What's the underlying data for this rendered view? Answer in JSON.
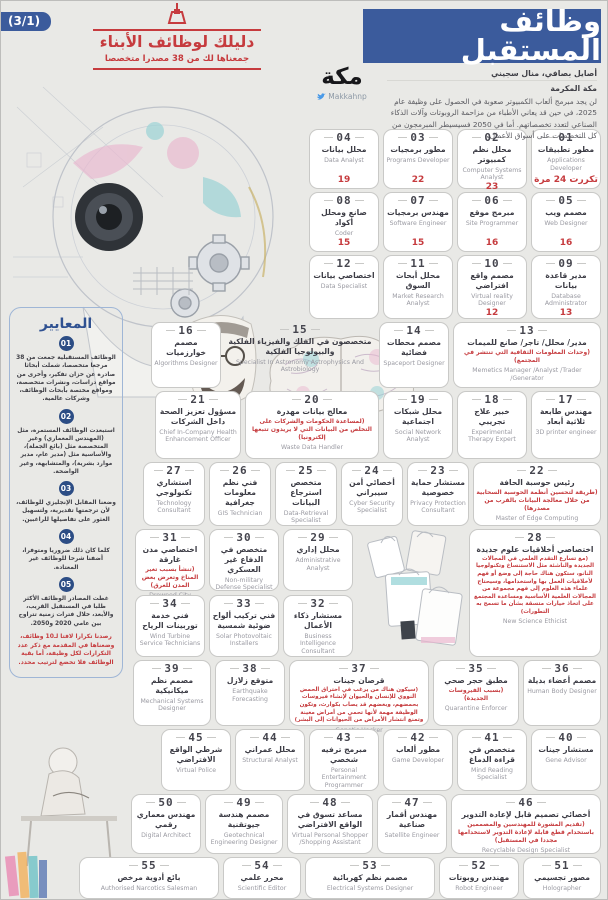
{
  "page": {
    "badge": "(3/1)"
  },
  "header": {
    "banner_title": "وظائف المستقبل",
    "guide_title": "دليلك لوظائف الأبناء",
    "guide_subtitle": "جمعناها لك من 38 مصدرا متخصصا",
    "brand": {
      "logo_text": "مكة",
      "twitter": "Makkahnp"
    },
    "byline": "أصايل بصافي، منال سجيني",
    "location": "مكة المكرمة",
    "intro": "لن يجد مبرمج ألعاب الكمبيوتر صعوبة في الحصول على وظيفة عام 2025، في حين قد يعاني الأطباء من مزاحمة الروبوتات وآلات الذكاء الصناعي لتعدد تخصصاتهم. أما في 2050 فسيسيطر المبرمجون من كل التخصصات على أسواق الأعمال."
  },
  "criteria": {
    "title": "المعايير",
    "items": [
      {
        "num": "01",
        "text": "الوظائف المستقبلية جمعت من 38 مرجعا متخصصا، شملت أبحاثا صادرة عن خزان تفكير، وأخرى من مواقع دراسات، ونشرات متخصصة، ومواقع مختصة بأبحاث الوظائف، وشركات عالمية."
      },
      {
        "num": "02",
        "text": "استبعدت الوظائف المستمرة، مثل (المهندس المعماري) وغير المتخصصة مثل (بائع الجملة)، والأساسية مثل (مدير عام، مدير موارد بشرية)، والمتشابهة، وغير الواضحة."
      },
      {
        "num": "03",
        "text": "وضعنا المقابل الإنجليزي للوظائف، لأن ترجمتها تقديرية، ولتسهيل العثور على تفاصيلها للراغبين."
      },
      {
        "num": "04",
        "text": "كلما كان ذلك ضروريا ومتوفرا، أضفنا شرحا للوظائف غير المعتادة."
      },
      {
        "num": "05",
        "text": "غطت المصادر الوظائف الأكثر طلبا في المستقبل القريب، والأبعد، خلال فترات زمنية تتراوح بين عامي 2020 و2050."
      }
    ],
    "note": "رصدنا تكرارا لافتا لـ10 وظائف، وضعناها في المقدمة مع ذكر عدد التكرارات لكل وظيفة، أما بقية الوظائف فلا تخضع لترتيب محدد."
  },
  "grid": {
    "row1": [
      {
        "num": "01",
        "ar": "مطور تطبيقات",
        "en": "Applications Developer",
        "count": "تكررت 24 مرة"
      },
      {
        "num": "02",
        "ar": "محلل نظم كمبيوتر",
        "en": "Computer Systems Analyst",
        "count": "23"
      },
      {
        "num": "03",
        "ar": "مطور برمجيات",
        "en": "Programs Developer",
        "count": "22"
      },
      {
        "num": "04",
        "ar": "محلل بيانات",
        "en": "Data Analyst",
        "count": "19"
      }
    ],
    "row2": [
      {
        "num": "05",
        "ar": "مصمم ويب",
        "en": "Web Designer",
        "count": "16"
      },
      {
        "num": "06",
        "ar": "مبرمج موقع",
        "en": "Site Programmer",
        "count": "16"
      },
      {
        "num": "07",
        "ar": "مهندس برمجيات",
        "en": "Software Engineer",
        "count": "15"
      },
      {
        "num": "08",
        "ar": "صانع ومحلل أكواد",
        "en": "Coder",
        "count": "15"
      }
    ],
    "row3": [
      {
        "num": "09",
        "ar": "مدير قاعدة بيانات",
        "en": "Database Administrator",
        "count": "13"
      },
      {
        "num": "10",
        "ar": "مصمم واقع افتراضي",
        "en": "Virtual reality Designer",
        "count": "12"
      },
      {
        "num": "11",
        "ar": "محلل أبحاث السوق",
        "en": "Market Research Analyst"
      },
      {
        "num": "12",
        "ar": "اختصاصي بيانات",
        "en": "Data Specialist"
      }
    ],
    "row4": [
      {
        "num": "13",
        "ar": "مدير/ محلل/ تاجر/ صانع للميمات",
        "note": "(وحدات المعلومات الثقافية التي تنتشر في المجتمع)",
        "en": "Memetics Manager /Analyst /Trader /Generator",
        "cls": "w148"
      },
      {
        "num": "14",
        "ar": "مصمم محطات فضائية",
        "en": "Spaceport Designer"
      },
      {
        "num": "15",
        "ar": "متخصصون في الفلك والفيزياء الفلكية والبيولوجيا الفلكية",
        "en": "Specialist In Astronomy Astrophysics And Astrobiology",
        "cls": "w150 plain"
      },
      {
        "num": "16",
        "ar": "مصمم خوارزميات",
        "en": "Algorithms Designer"
      }
    ],
    "row5": [
      {
        "num": "17",
        "ar": "مهندس طابعة ثلاثية أبعاد",
        "en": "3D printer engineer"
      },
      {
        "num": "18",
        "ar": "خبير علاج تجريبي",
        "en": "Experimental Therapy Expert"
      },
      {
        "num": "19",
        "ar": "محلل شبكات اجتماعية",
        "en": "Social Network Analyst"
      },
      {
        "num": "20",
        "ar": "معالج بيانات مهدرة",
        "note": "(لمساعدة الحكومات والشركات على التخلص من البيانات التي لا يريدون تتبعها إلكترونيا)",
        "en": "Waste Data Handler",
        "cls": "w134"
      },
      {
        "num": "21",
        "ar": "مسؤول تعزيز الصحة داخل الشركات",
        "en": "Chief In-Company Health Enhancement Officer",
        "cls": "w86"
      }
    ],
    "row6": [
      {
        "num": "22",
        "ar": "رئيس حوسبة الحافة",
        "note": "(طريقة لتحسين أنظمة الحوسبة السحابية من خلال معالجة البيانات بالقرب من مصدرها)",
        "en": "Master of Edge Computing",
        "cls": "w128"
      },
      {
        "num": "23",
        "ar": "مستشار حماية خصوصية",
        "en": "Privacy Protection Consultant",
        "cls": "w62"
      },
      {
        "num": "24",
        "ar": "أخصائي أمن سيبراني",
        "en": "Cyber Security Specialist",
        "cls": "w62"
      },
      {
        "num": "25",
        "ar": "متخصص استرجاع البيانات",
        "en": "Data-Retrieval Specialist",
        "cls": "w62"
      },
      {
        "num": "26",
        "ar": "فني نظم معلومات جغرافية",
        "en": "GIS Technician",
        "cls": "w62"
      },
      {
        "num": "27",
        "ar": "استشاري تكنولوجي",
        "en": "Technology Consultant",
        "cls": "w62"
      }
    ],
    "row78main": [
      {
        "num": "28",
        "ar": "اختصاصي أخلاقيات علوم جديدة",
        "note": "(مع تسارع التقدم العلمي في المجالات الجديدة والناشئة مثل الاستنساخ وتكنولوجيا النانو، ستكون هناك حاجة إلى وضع أو فهم لأخلاقيات العمل بها واستخدامها، وسيحتاج علماء هذه العلوم إلى فهم مجموعة من المجالات العلمية الأساسية ومساعدة المجتمع على اتخاذ خيارات متسقة بشأن ما تسمح به التطورات)",
        "en": "New Science Ethicist",
        "cls": "w132 tallcard",
        "noteSmall": true
      },
      {
        "spacer": "bags"
      }
    ],
    "row7": [
      {
        "num": "29",
        "ar": "محلل إداري",
        "en": "Administrative Analyst"
      },
      {
        "num": "30",
        "ar": "متخصص في الدفاع غير العسكري",
        "en": "Non-military Defense Specialist"
      },
      {
        "num": "31",
        "ar": "اختصاصي مدن غارقة",
        "note": "(تنشأ بسبب تغير المناخ وتعرض بعض المدن للغرق)",
        "en": "Drowned City Specialist"
      }
    ],
    "row8": [
      {
        "num": "32",
        "ar": "مستشار ذكاء الأعمال",
        "en": "Business Intelligence Consultant"
      },
      {
        "num": "33",
        "ar": "فني تركيب ألواح ضوئية شمسية",
        "en": "Solar Photovoltaic Installers"
      },
      {
        "num": "34",
        "ar": "فني خدمة توربينات الرياح",
        "en": "Wind Turbine Service Technicians"
      }
    ],
    "row9": [
      {
        "num": "36",
        "ar": "مصمم أعضاء بديلة",
        "en": "Human Body Designer",
        "cls": "w78"
      },
      {
        "num": "35",
        "ar": "مطبق حجر صحي",
        "note": "(بسبب الفيروسات الجديدة)",
        "en": "Quarantine Enforcer",
        "cls": "w86"
      },
      {
        "num": "37",
        "ar": "قرصان جينات",
        "note": "(سيكون هناك من يرغب في اختراق الحمض النووي للإنسان والحيوان لإنشاء فيروسات بحمضهم، وبعضهم قد يصاب بكوارث، وتكون الوظيفة مهمة لأنها تحمي من أمراض معينة وتمنع انتشار الأمراض من الحيوانات إلى البشر)",
        "en": "Genetic Hacker",
        "cls": "w140",
        "noteSmall": true
      },
      {
        "num": "38",
        "ar": "متوقع زلازل",
        "en": "Earthquake Forecasting"
      },
      {
        "num": "39",
        "ar": "مصمم نظم ميكانيكية",
        "en": "Mechanical Systems Designer",
        "cls": "w78"
      }
    ],
    "row10": [
      {
        "num": "40",
        "ar": "مستشار جينات",
        "en": "Gene Advisor"
      },
      {
        "num": "41",
        "ar": "متخصص في قراءة الدماغ",
        "en": "Mind Reading Specialist"
      },
      {
        "num": "42",
        "ar": "مطور ألعاب",
        "en": "Game Developer"
      },
      {
        "num": "43",
        "ar": "مبرمج ترفيه شخصي",
        "en": "Personal Entertainment Programmer"
      },
      {
        "num": "44",
        "ar": "محلل عمراني",
        "en": "Structural Analyst"
      },
      {
        "num": "45",
        "ar": "شرطي الواقع الافتراضي",
        "en": "Virtual Police"
      }
    ],
    "row11": [
      {
        "num": "46",
        "ar": "أخصائي تصميم قابل لإعادة التدوير",
        "note": "(تقديم المشورة للمهندسين والمصممين باستخدام قطع قابلة لإعادة التدوير لاستخدامها مجددا في المستقبل)",
        "en": "Recyclable Design Specialist",
        "cls": "w150"
      },
      {
        "num": "47",
        "ar": "مهندس أقمار صناعية",
        "en": "Satellite Engineer"
      },
      {
        "num": "48",
        "ar": "مساعد تسوق في الواقع الافتراضي",
        "en": "Virtual Personal Shopper /Shopping Assistant",
        "cls": "w86"
      },
      {
        "num": "49",
        "ar": "مصمم هندسة جيوتقنية",
        "en": "Geotechnical Engineering Designer",
        "cls": "w78"
      },
      {
        "num": "50",
        "ar": "مهندس معماري رقمي",
        "en": "Digital Architect"
      }
    ],
    "row12": [
      {
        "num": "51",
        "ar": "مصور تجسيمي",
        "en": "Holographer",
        "cls": "w78"
      },
      {
        "num": "52",
        "ar": "مهندس روبوتات",
        "en": "Robot Engineer",
        "cls": "w80"
      },
      {
        "num": "53",
        "ar": "مصمم نظم كهربائية",
        "en": "Electrical Systems Designer",
        "cls": "w130"
      },
      {
        "num": "54",
        "ar": "محرر علمي",
        "en": "Scientific Editor",
        "cls": "w78"
      },
      {
        "num": "55",
        "ar": "بائع أدوية مرخص",
        "en": "Authorised Narcotics Salesman",
        "cls": "w140"
      }
    ]
  }
}
